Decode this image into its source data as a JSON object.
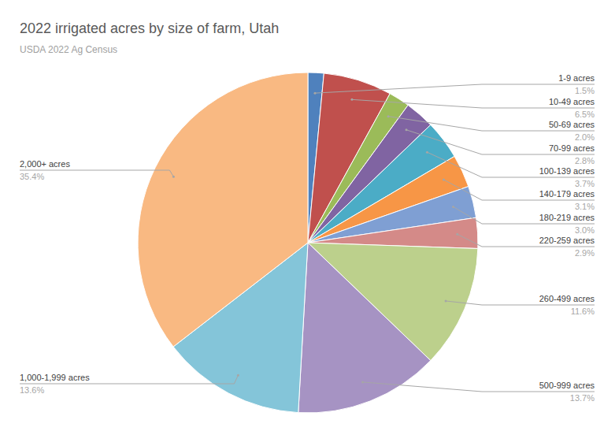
{
  "chart_data": {
    "type": "pie",
    "title": "2022 irrigated acres by size of farm, Utah",
    "subtitle": "USDA 2022 Ag Census",
    "categories": [
      "1-9 acres",
      "10-49 acres",
      "50-69 acres",
      "70-99 acres",
      "100-139 acres",
      "140-179 acres",
      "180-219 acres",
      "220-259 acres",
      "260-499 acres",
      "500-999 acres",
      "1,000-1,999 acres",
      "2,000+ acres"
    ],
    "values": [
      1.5,
      6.5,
      2.0,
      2.8,
      3.7,
      3.1,
      3.0,
      2.9,
      11.6,
      13.7,
      13.6,
      35.4
    ],
    "value_labels": [
      "1.5%",
      "6.5%",
      "2.0%",
      "2.8%",
      "3.7%",
      "3.1%",
      "3.0%",
      "2.9%",
      "11.6%",
      "13.7%",
      "13.6%",
      "35.4%"
    ],
    "colors": [
      "#4f81bd",
      "#c0504d",
      "#9bbb59",
      "#8064a2",
      "#4bacc6",
      "#f79646",
      "#7f9fd3",
      "#d48a88",
      "#bcd08c",
      "#a693c3",
      "#84c5d9",
      "#f9b982"
    ],
    "data_labels": true
  }
}
